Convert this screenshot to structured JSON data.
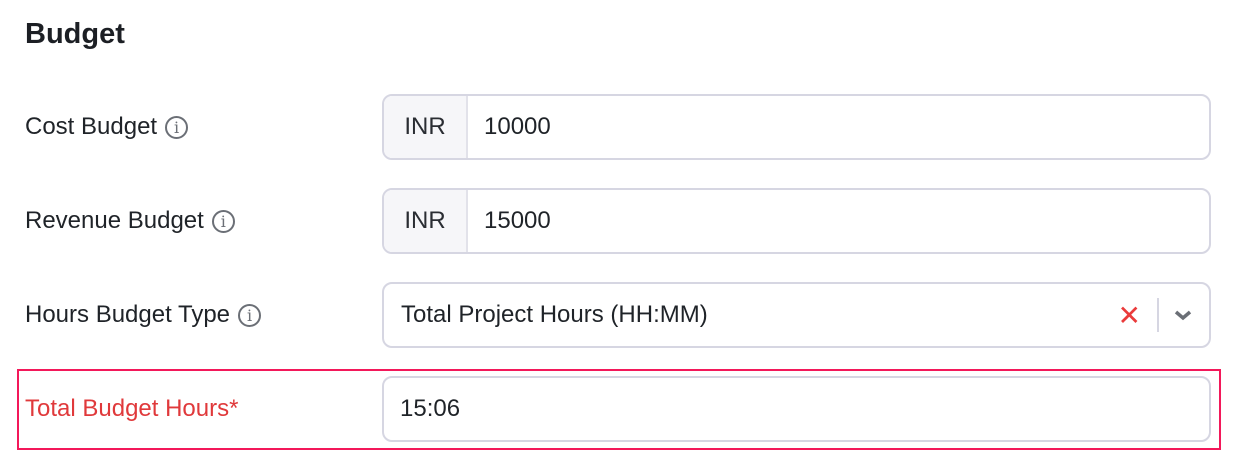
{
  "section_title": "Budget",
  "cost_budget": {
    "label": "Cost Budget",
    "currency": "INR",
    "value": "10000"
  },
  "revenue_budget": {
    "label": "Revenue Budget",
    "currency": "INR",
    "value": "15000"
  },
  "hours_budget_type": {
    "label": "Hours Budget Type",
    "value": "Total Project Hours (HH:MM)"
  },
  "total_budget_hours": {
    "label": "Total Budget Hours*",
    "value": "15:06"
  },
  "colors": {
    "error": "#e0393b",
    "highlight_border": "#f3185a",
    "field_border": "#d6d6e2"
  }
}
